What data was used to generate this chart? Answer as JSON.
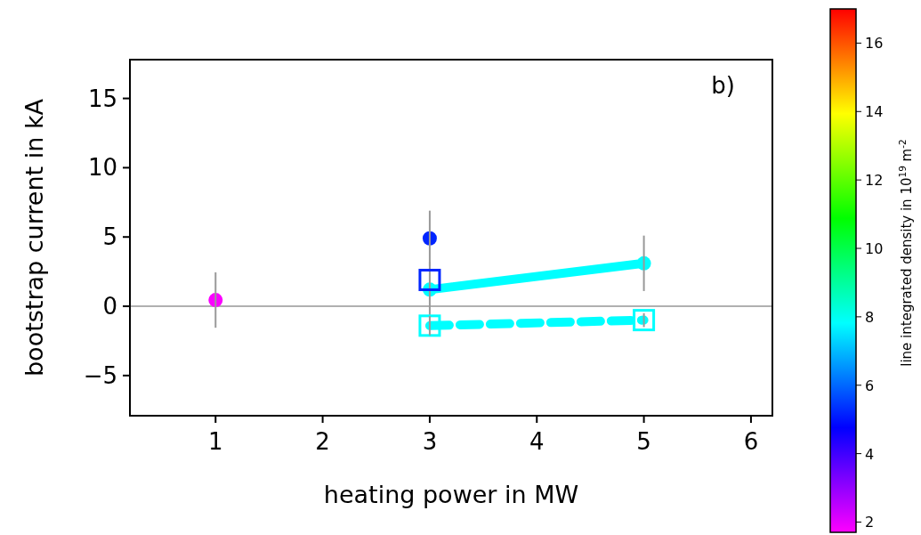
{
  "chart_data": {
    "type": "scatter",
    "xlabel": "heating power in MW",
    "ylabel": "bootstrap current in kA",
    "clabel": "line integrated density in 10$^{19}$ m$^{-2}$",
    "annotations": [
      "b)"
    ],
    "xlim": [
      0.2,
      6.2
    ],
    "xticks": [
      1,
      2,
      3,
      4,
      5,
      6
    ],
    "ylim": [
      -7.9,
      17.8
    ],
    "yticks": [
      {
        "value": -5,
        "label": "−5"
      },
      0,
      5,
      10,
      15
    ],
    "clim": [
      1.7,
      17
    ],
    "cticks": [
      2,
      4,
      6,
      8,
      10,
      12,
      14,
      16
    ],
    "grid": false,
    "ref_lines": [
      {
        "axis": "y",
        "value": 0,
        "color": "#b0b0b0"
      }
    ],
    "series": [
      {
        "marker": "circle",
        "x": [
          1
        ],
        "values": [
          0.45
        ],
        "cvalues": [
          1.75
        ],
        "errors": [
          2
        ]
      },
      {
        "marker": "circle",
        "x": [
          3
        ],
        "values": [
          4.9
        ],
        "cvalues": [
          5.2
        ],
        "errors": [
          2
        ]
      },
      {
        "type": "line",
        "marker": "circle",
        "line_style": "solid",
        "x": [
          3,
          5
        ],
        "values": [
          1.2,
          3.1
        ],
        "color": "#00ffff",
        "errors": [
          2,
          2
        ]
      },
      {
        "marker": "square",
        "x": [
          3
        ],
        "values": [
          1.9
        ],
        "cvalues": [
          5.2
        ]
      },
      {
        "type": "line",
        "marker": "square",
        "line_style": "dashed",
        "x": [
          3,
          5
        ],
        "values": [
          -1.4,
          -1.0
        ],
        "color": "#00ffff",
        "errors": [
          0.7,
          0.5
        ]
      }
    ]
  }
}
